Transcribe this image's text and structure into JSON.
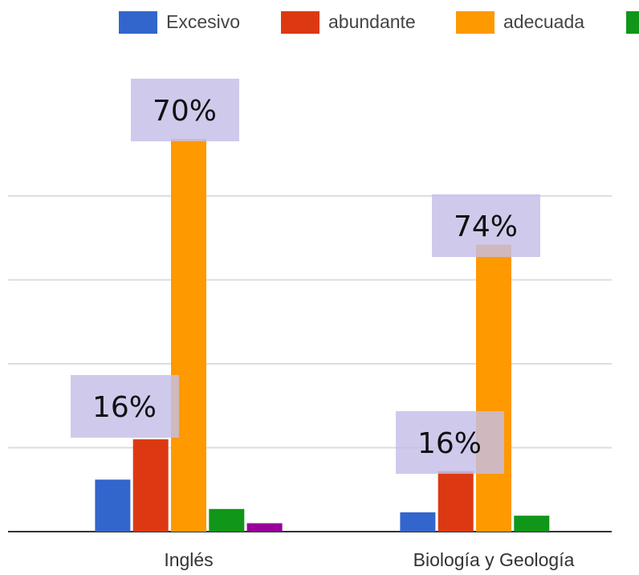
{
  "chart_data": {
    "type": "bar",
    "categories": [
      "Inglés",
      "Biología y Geología"
    ],
    "series": [
      {
        "name": "Excesivo",
        "color": "#3366cc",
        "values": [
          0.62,
          0.23
        ]
      },
      {
        "name": "abundante",
        "color": "#dc3912",
        "values": [
          1.1,
          0.72
        ]
      },
      {
        "name": "adecuada",
        "color": "#ff9900",
        "values": [
          4.68,
          3.42
        ]
      },
      {
        "color": "#109618",
        "values": [
          0.27,
          0.19
        ]
      },
      {
        "color": "#990099",
        "values": [
          0.1,
          null
        ]
      }
    ],
    "ylim": [
      0,
      4.9
    ],
    "yticks": [
      0,
      1,
      2,
      3,
      4
    ],
    "grid": true,
    "annotations": [
      {
        "text": "70%",
        "series": 2,
        "category": 0
      },
      {
        "text": "16%",
        "series": 1,
        "category": 0
      },
      {
        "text": "74%",
        "series": 2,
        "category": 1
      },
      {
        "text": "16%",
        "series": 1,
        "category": 1
      }
    ]
  }
}
